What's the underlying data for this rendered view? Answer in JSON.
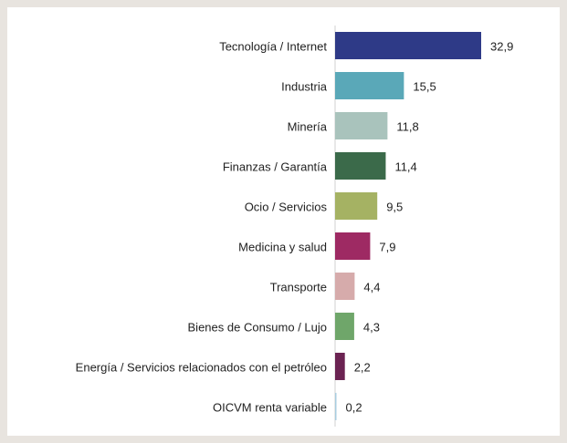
{
  "chart_data": {
    "type": "bar",
    "categories": [
      "Tecnología / Internet",
      "Industria",
      "Minería",
      "Finanzas / Garantía",
      "Ocio / Servicios",
      "Medicina y salud",
      "Transporte",
      "Bienes de Consumo / Lujo",
      "Energía / Servicios relacionados con el petróleo",
      "OICVM renta variable"
    ],
    "values": [
      32.9,
      15.5,
      11.8,
      11.4,
      9.5,
      7.9,
      4.4,
      4.3,
      2.2,
      0.2
    ],
    "value_labels": [
      "32,9",
      "15,5",
      "11,8",
      "11,4",
      "9,5",
      "7,9",
      "4,4",
      "4,3",
      "2,2",
      "0,2"
    ],
    "colors": [
      "#2e3a87",
      "#5aa8b8",
      "#a9c3bc",
      "#3b6a4a",
      "#a5b263",
      "#9e2a63",
      "#d6abab",
      "#6fa66a",
      "#6b2352",
      "#a9cde0"
    ]
  }
}
